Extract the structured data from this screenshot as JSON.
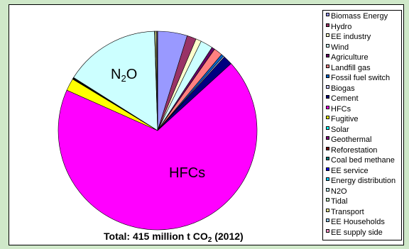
{
  "chart_data": {
    "type": "pie",
    "title": "",
    "footer": {
      "prefix": "Total: 415 million t CO",
      "subscript": "2",
      "suffix": " (2012)"
    },
    "slice_labels": {
      "n2o": {
        "base": "N",
        "sub": "2",
        "tail": "O"
      },
      "hfcs": "HFCs"
    },
    "slices": [
      {
        "name": "Biomass Energy",
        "value": 4.8,
        "color": "#9999ff"
      },
      {
        "name": "Hydro",
        "value": 1.5,
        "color": "#993366"
      },
      {
        "name": "EE industry",
        "value": 0.9,
        "color": "#ffffcc"
      },
      {
        "name": "Wind",
        "value": 2.0,
        "color": "#ccffff"
      },
      {
        "name": "Agriculture",
        "value": 0.5,
        "color": "#660066"
      },
      {
        "name": "Landfill gas",
        "value": 1.4,
        "color": "#ff8080"
      },
      {
        "name": "Fossil fuel switch",
        "value": 0.4,
        "color": "#0066cc"
      },
      {
        "name": "Biogas",
        "value": 0.2,
        "color": "#ccccff"
      },
      {
        "name": "Cement",
        "value": 1.5,
        "color": "#000080"
      },
      {
        "name": "HFCs",
        "value": 68.3,
        "color": "#ff00ff"
      },
      {
        "name": "Fugitive",
        "value": 2.0,
        "color": "#ffff00"
      },
      {
        "name": "Solar",
        "value": 0.05,
        "color": "#00ffff"
      },
      {
        "name": "Geothermal",
        "value": 0.05,
        "color": "#800080"
      },
      {
        "name": "Reforestation",
        "value": 0.05,
        "color": "#800000"
      },
      {
        "name": "Coal bed methane",
        "value": 0.05,
        "color": "#008080"
      },
      {
        "name": "EE service",
        "value": 0.05,
        "color": "#0000ff"
      },
      {
        "name": "Energy distribution",
        "value": 0.05,
        "color": "#00ccff"
      },
      {
        "name": "N2O",
        "value": 15.5,
        "color": "#ccffff"
      },
      {
        "name": "Tidal",
        "value": 0.1,
        "color": "#ccffcc"
      },
      {
        "name": "Transport",
        "value": 0.2,
        "color": "#ffff99"
      },
      {
        "name": "EE Households",
        "value": 0.1,
        "color": "#99ccff"
      },
      {
        "name": "EE supply side",
        "value": 0.1,
        "color": "#ff99cc"
      }
    ],
    "legend_placement": "right"
  }
}
